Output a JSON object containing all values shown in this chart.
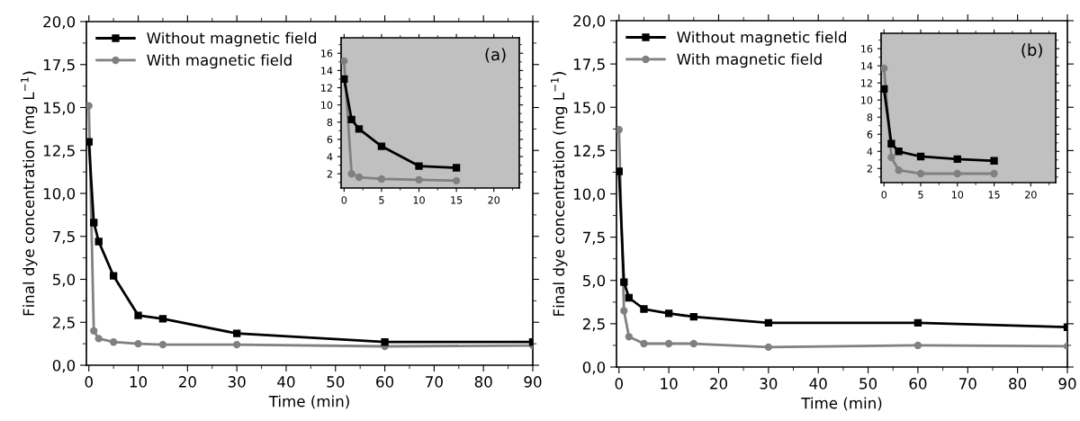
{
  "chart_data": [
    {
      "type": "line",
      "xlabel": "Time (min)",
      "ylabel": "Final dye concentration (mg L$^{−1}$)",
      "x": [
        0,
        1,
        2,
        5,
        10,
        15,
        30,
        60,
        90
      ],
      "series": [
        {
          "name": "Without magnetic field",
          "color": "#000000",
          "marker": "square",
          "values": [
            13.0,
            8.3,
            7.2,
            5.2,
            2.9,
            2.7,
            1.85,
            1.35,
            1.35
          ]
        },
        {
          "name": "With magnetic field",
          "color": "#808080",
          "marker": "circle",
          "values": [
            15.1,
            2.0,
            1.55,
            1.35,
            1.25,
            1.2,
            1.2,
            1.1,
            1.15
          ]
        }
      ],
      "xlim": [
        -0.5,
        90
      ],
      "xticks": [
        0,
        10,
        20,
        30,
        40,
        50,
        60,
        70,
        80,
        90
      ],
      "ylim": [
        0,
        20
      ],
      "yticks": [
        {
          "value": 0,
          "label": "0,0"
        },
        {
          "value": 2.5,
          "label": "2,5"
        },
        {
          "value": 5,
          "label": "5,0"
        },
        {
          "value": 7.5,
          "label": "7,5"
        },
        {
          "value": 10,
          "label": "10,0"
        },
        {
          "value": 12.5,
          "label": "12,5"
        },
        {
          "value": 15,
          "label": "15,0"
        },
        {
          "value": 17.5,
          "label": "17,5"
        },
        {
          "value": 20,
          "label": "20,0"
        }
      ],
      "legend": "top left",
      "grid": false
    },
    {
      "type": "line",
      "x": [
        0,
        1,
        2,
        5,
        10,
        15
      ],
      "annotations": [
        "(a)"
      ],
      "series": [
        {
          "color": "#000000",
          "marker": "square",
          "values": [
            13.0,
            8.3,
            7.2,
            5.2,
            2.9,
            2.7
          ]
        },
        {
          "color": "#808080",
          "marker": "circle",
          "values": [
            15.1,
            2.0,
            1.6,
            1.4,
            1.3,
            1.2
          ]
        }
      ],
      "xlim": [
        -0.4,
        23.4
      ],
      "xticks": [
        0,
        5,
        10,
        15,
        20
      ],
      "ylim": [
        0.35,
        17.8
      ],
      "yticks": [
        2,
        4,
        6,
        8,
        10,
        12,
        14,
        16
      ],
      "grid": false
    },
    {
      "type": "line",
      "xlabel": "Time (min)",
      "ylabel": "Final dye concentration (mg L$^{−1}$)",
      "x": [
        0,
        1,
        2,
        5,
        10,
        15,
        30,
        60,
        90
      ],
      "series": [
        {
          "name": "Without magnetic field",
          "color": "#000000",
          "marker": "square",
          "values": [
            11.3,
            4.9,
            4.0,
            3.35,
            3.1,
            2.9,
            2.55,
            2.55,
            2.3
          ]
        },
        {
          "name": "With magnetic field",
          "color": "#808080",
          "marker": "circle",
          "values": [
            13.7,
            3.25,
            1.75,
            1.35,
            1.35,
            1.35,
            1.15,
            1.25,
            1.2
          ]
        }
      ],
      "xlim": [
        -0.5,
        90
      ],
      "xticks": [
        0,
        10,
        20,
        30,
        40,
        50,
        60,
        70,
        80,
        90
      ],
      "ylim": [
        0,
        20
      ],
      "yticks": [
        {
          "value": 0,
          "label": "0,0"
        },
        {
          "value": 2.5,
          "label": "2,5"
        },
        {
          "value": 5,
          "label": "5,0"
        },
        {
          "value": 7.5,
          "label": "7,5"
        },
        {
          "value": 10,
          "label": "10,0"
        },
        {
          "value": 12.5,
          "label": "12,5"
        },
        {
          "value": 15,
          "label": "15,0"
        },
        {
          "value": 17.5,
          "label": "17,5"
        },
        {
          "value": 20,
          "label": "20,0"
        }
      ],
      "legend": "top left",
      "grid": false
    },
    {
      "type": "line",
      "x": [
        0,
        1,
        2,
        5,
        10,
        15
      ],
      "annotations": [
        "(b)"
      ],
      "series": [
        {
          "color": "#000000",
          "marker": "square",
          "values": [
            11.3,
            4.9,
            4.0,
            3.4,
            3.1,
            2.9
          ]
        },
        {
          "color": "#808080",
          "marker": "circle",
          "values": [
            13.7,
            3.3,
            1.8,
            1.4,
            1.4,
            1.4
          ]
        }
      ],
      "xlim": [
        -0.4,
        23.4
      ],
      "xticks": [
        0,
        5,
        10,
        15,
        20
      ],
      "ylim": [
        0.35,
        17.8
      ],
      "yticks": [
        2,
        4,
        6,
        8,
        10,
        12,
        14,
        16
      ],
      "grid": false
    }
  ]
}
